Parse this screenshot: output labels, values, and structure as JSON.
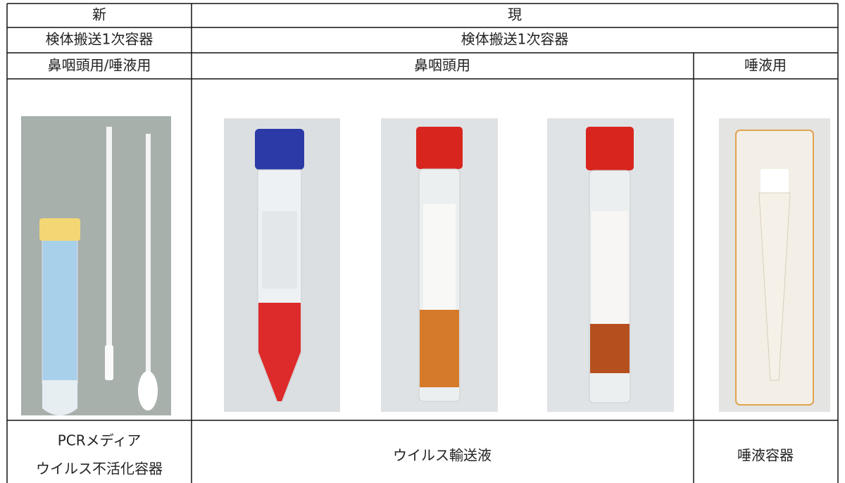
{
  "table": {
    "rows": [
      [
        "新",
        "現"
      ],
      [
        "検体搬送1次容器",
        "検体搬送1次容器"
      ],
      [
        "鼻咽頭用/唾液用",
        "鼻咽頭用",
        "唾液用"
      ],
      [
        [
          "PCRメディア",
          "ウイルス不活化容器"
        ],
        "ウイルス輸送液",
        "唾液容器"
      ]
    ]
  }
}
